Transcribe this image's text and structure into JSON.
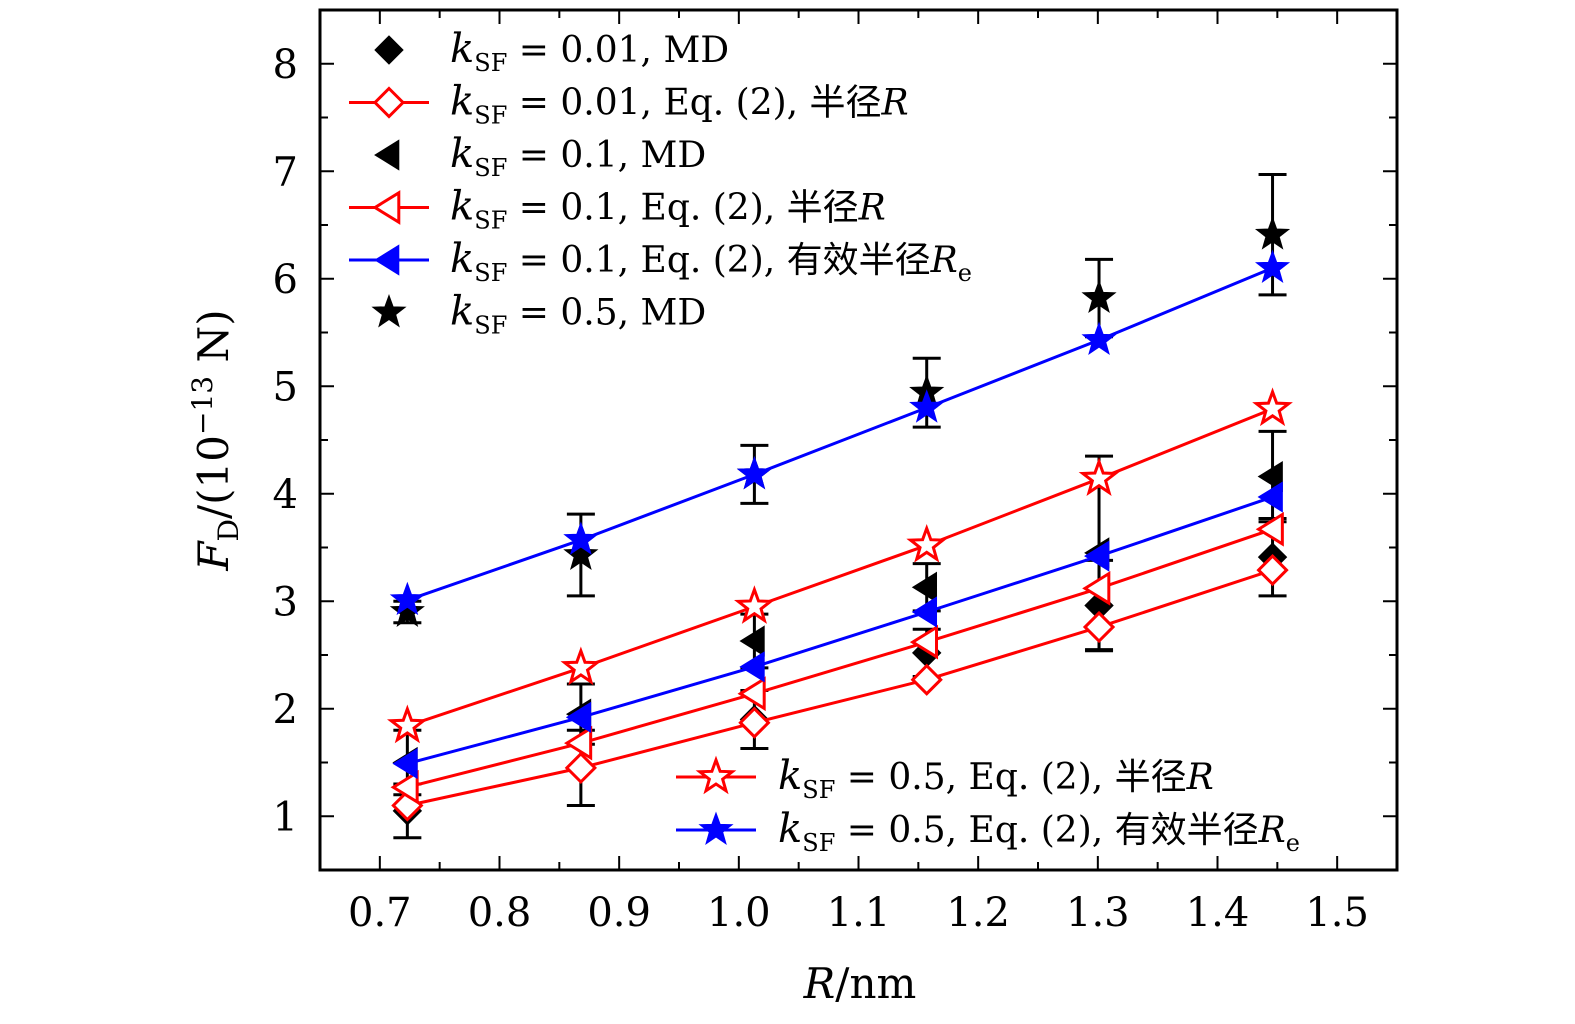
{
  "chart_data": {
    "type": "scatter",
    "xlabel": "R/nm",
    "ylabel": "F_D/(10^-13 N)",
    "ylabel_parts": {
      "F": "F",
      "sub": "D",
      "pre": "/(10",
      "sup": "−13",
      "post": " N)"
    },
    "xlabel_parts": {
      "R": "R",
      "rest": "/nm"
    },
    "xlim": [
      0.65,
      1.55
    ],
    "ylim": [
      0.5,
      8.5
    ],
    "xticks": [
      "0.7",
      "0.8",
      "0.9",
      "1.0",
      "1.1",
      "1.2",
      "1.3",
      "1.4",
      "1.5"
    ],
    "yticks": [
      "1",
      "2",
      "3",
      "4",
      "5",
      "6",
      "7",
      "8"
    ],
    "x": [
      0.723,
      0.868,
      1.013,
      1.157,
      1.301,
      1.446
    ],
    "series": [
      {
        "name": "kSF = 0.01, MD",
        "k": "k",
        "sub": "SF",
        "rest": " = 0.01, MD",
        "marker": "diamond",
        "filled": true,
        "color": "#000000",
        "line": false,
        "values": [
          1.05,
          1.45,
          1.9,
          2.52,
          2.96,
          3.41
        ],
        "yerr": [
          0.25,
          0.35,
          0.27,
          0.22,
          0.42,
          0.36
        ],
        "legend": "top-left"
      },
      {
        "name": "kSF = 0.01, Eq. (2), 半径R",
        "k": "k",
        "sub": "SF",
        "rest": " = 0.01, Eq. (2), 半径",
        "tail": "R",
        "marker": "diamond",
        "filled": false,
        "color": "#ff0000",
        "line": true,
        "values": [
          1.1,
          1.45,
          1.87,
          2.27,
          2.76,
          3.29
        ],
        "legend": "top-left"
      },
      {
        "name": "kSF = 0.1, MD",
        "k": "k",
        "sub": "SF",
        "rest": " = 0.1, MD",
        "marker": "triangle-left",
        "filled": true,
        "color": "#000000",
        "line": false,
        "values": [
          1.5,
          1.95,
          2.63,
          3.13,
          3.45,
          4.16
        ],
        "yerr": [
          0.3,
          0.28,
          0.25,
          0.22,
          0.9,
          0.42
        ],
        "legend": "top-left"
      },
      {
        "name": "kSF = 0.1, Eq. (2), 半径R",
        "k": "k",
        "sub": "SF",
        "rest": " = 0.1, Eq. (2), 半径",
        "tail": "R",
        "marker": "triangle-left",
        "filled": false,
        "color": "#ff0000",
        "line": true,
        "values": [
          1.27,
          1.68,
          2.14,
          2.62,
          3.12,
          3.67
        ],
        "legend": "top-left"
      },
      {
        "name": "kSF = 0.1, Eq. (2), 有效半径Re",
        "k": "k",
        "sub": "SF",
        "rest": " = 0.1, Eq. (2), 有效半径",
        "tail": "R",
        "tailsub": "e",
        "marker": "triangle-left",
        "filled": true,
        "color": "#0000ff",
        "line": true,
        "values": [
          1.49,
          1.92,
          2.39,
          2.9,
          3.42,
          3.97
        ],
        "legend": "top-left"
      },
      {
        "name": "kSF = 0.5, MD",
        "k": "k",
        "sub": "SF",
        "rest": " = 0.5, MD",
        "marker": "star",
        "filled": true,
        "color": "#000000",
        "line": false,
        "values": [
          2.9,
          3.43,
          4.18,
          4.94,
          5.82,
          6.41
        ],
        "yerr": [
          0.1,
          0.38,
          0.27,
          0.32,
          0.36,
          0.56
        ],
        "legend": "top-left"
      },
      {
        "name": "kSF = 0.5, Eq. (2), 半径R",
        "k": "k",
        "sub": "SF",
        "rest": " = 0.5, Eq. (2), 半径",
        "tail": "R",
        "marker": "star",
        "filled": false,
        "color": "#ff0000",
        "line": true,
        "values": [
          1.84,
          2.38,
          2.95,
          3.52,
          4.14,
          4.79
        ],
        "legend": "bottom-right"
      },
      {
        "name": "kSF = 0.5, Eq. (2), 有效半径Re",
        "k": "k",
        "sub": "SF",
        "rest": " = 0.5, Eq. (2), 有效半径",
        "tail": "R",
        "tailsub": "e",
        "marker": "star",
        "filled": true,
        "color": "#0000ff",
        "line": true,
        "values": [
          3.01,
          3.57,
          4.18,
          4.8,
          5.43,
          6.1
        ],
        "legend": "bottom-right"
      }
    ]
  }
}
